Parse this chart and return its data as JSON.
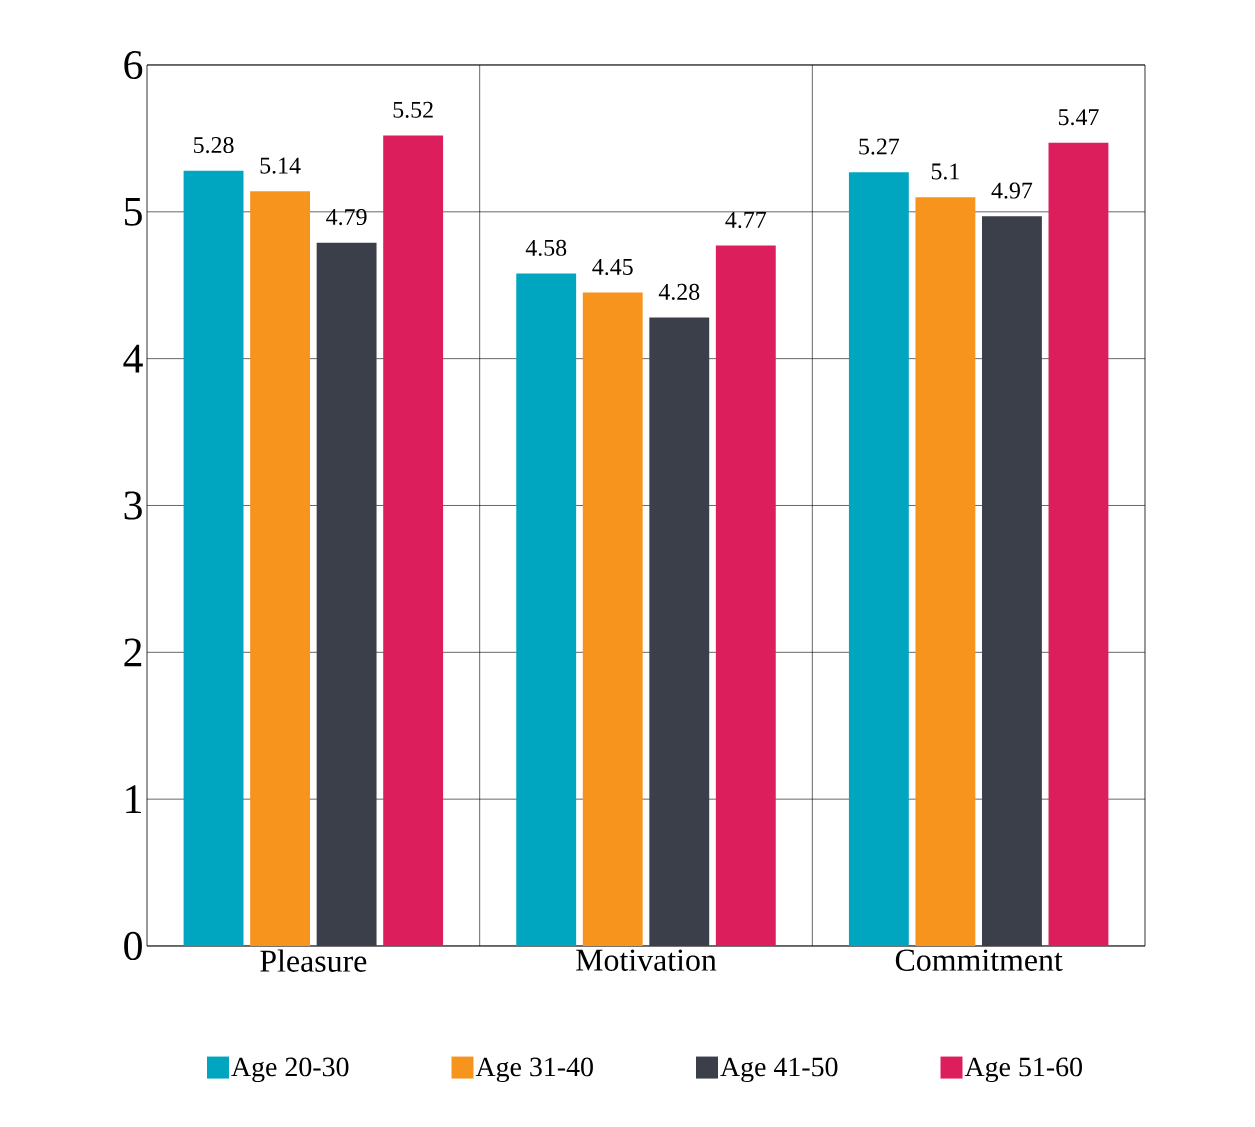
{
  "chart_data": {
    "type": "bar",
    "categories": [
      "Pleasure",
      "Motivation",
      "Commitment"
    ],
    "series": [
      {
        "name": "Age 20-30",
        "color": "#00a5c0",
        "values": [
          5.28,
          4.58,
          5.27
        ]
      },
      {
        "name": "Age 31-40",
        "color": "#f7941d",
        "values": [
          5.14,
          4.45,
          5.1
        ]
      },
      {
        "name": "Age 41-50",
        "color": "#3b3f4a",
        "values": [
          4.79,
          4.28,
          4.97
        ]
      },
      {
        "name": "Age 51-60",
        "color": "#dc1e5c",
        "values": [
          5.52,
          4.77,
          5.47
        ]
      }
    ],
    "ylim": [
      0,
      6
    ],
    "yticks": [
      0,
      1,
      2,
      3,
      4,
      5,
      6
    ],
    "grid": true,
    "legend": "bottom",
    "data_labels": true
  }
}
